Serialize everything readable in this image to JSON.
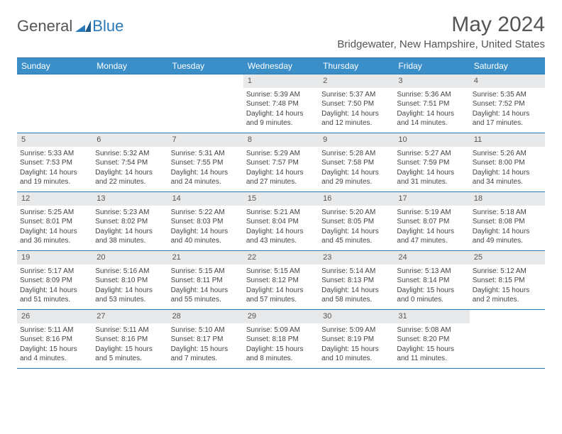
{
  "logo": {
    "text1": "General",
    "text2": "Blue"
  },
  "title": "May 2024",
  "location": "Bridgewater, New Hampshire, United States",
  "colors": {
    "header_bg": "#3b8fc9",
    "border": "#2a7ab9",
    "daynum_bg": "#e8e9ea"
  },
  "typography": {
    "title_fontsize": 30,
    "location_fontsize": 15,
    "dayhead_fontsize": 12,
    "cell_fontsize": 10
  },
  "dayNames": [
    "Sunday",
    "Monday",
    "Tuesday",
    "Wednesday",
    "Thursday",
    "Friday",
    "Saturday"
  ],
  "weeks": [
    [
      null,
      null,
      null,
      {
        "n": "1",
        "sr": "5:39 AM",
        "ss": "7:48 PM",
        "dl": "14 hours and 9 minutes."
      },
      {
        "n": "2",
        "sr": "5:37 AM",
        "ss": "7:50 PM",
        "dl": "14 hours and 12 minutes."
      },
      {
        "n": "3",
        "sr": "5:36 AM",
        "ss": "7:51 PM",
        "dl": "14 hours and 14 minutes."
      },
      {
        "n": "4",
        "sr": "5:35 AM",
        "ss": "7:52 PM",
        "dl": "14 hours and 17 minutes."
      }
    ],
    [
      {
        "n": "5",
        "sr": "5:33 AM",
        "ss": "7:53 PM",
        "dl": "14 hours and 19 minutes."
      },
      {
        "n": "6",
        "sr": "5:32 AM",
        "ss": "7:54 PM",
        "dl": "14 hours and 22 minutes."
      },
      {
        "n": "7",
        "sr": "5:31 AM",
        "ss": "7:55 PM",
        "dl": "14 hours and 24 minutes."
      },
      {
        "n": "8",
        "sr": "5:29 AM",
        "ss": "7:57 PM",
        "dl": "14 hours and 27 minutes."
      },
      {
        "n": "9",
        "sr": "5:28 AM",
        "ss": "7:58 PM",
        "dl": "14 hours and 29 minutes."
      },
      {
        "n": "10",
        "sr": "5:27 AM",
        "ss": "7:59 PM",
        "dl": "14 hours and 31 minutes."
      },
      {
        "n": "11",
        "sr": "5:26 AM",
        "ss": "8:00 PM",
        "dl": "14 hours and 34 minutes."
      }
    ],
    [
      {
        "n": "12",
        "sr": "5:25 AM",
        "ss": "8:01 PM",
        "dl": "14 hours and 36 minutes."
      },
      {
        "n": "13",
        "sr": "5:23 AM",
        "ss": "8:02 PM",
        "dl": "14 hours and 38 minutes."
      },
      {
        "n": "14",
        "sr": "5:22 AM",
        "ss": "8:03 PM",
        "dl": "14 hours and 40 minutes."
      },
      {
        "n": "15",
        "sr": "5:21 AM",
        "ss": "8:04 PM",
        "dl": "14 hours and 43 minutes."
      },
      {
        "n": "16",
        "sr": "5:20 AM",
        "ss": "8:05 PM",
        "dl": "14 hours and 45 minutes."
      },
      {
        "n": "17",
        "sr": "5:19 AM",
        "ss": "8:07 PM",
        "dl": "14 hours and 47 minutes."
      },
      {
        "n": "18",
        "sr": "5:18 AM",
        "ss": "8:08 PM",
        "dl": "14 hours and 49 minutes."
      }
    ],
    [
      {
        "n": "19",
        "sr": "5:17 AM",
        "ss": "8:09 PM",
        "dl": "14 hours and 51 minutes."
      },
      {
        "n": "20",
        "sr": "5:16 AM",
        "ss": "8:10 PM",
        "dl": "14 hours and 53 minutes."
      },
      {
        "n": "21",
        "sr": "5:15 AM",
        "ss": "8:11 PM",
        "dl": "14 hours and 55 minutes."
      },
      {
        "n": "22",
        "sr": "5:15 AM",
        "ss": "8:12 PM",
        "dl": "14 hours and 57 minutes."
      },
      {
        "n": "23",
        "sr": "5:14 AM",
        "ss": "8:13 PM",
        "dl": "14 hours and 58 minutes."
      },
      {
        "n": "24",
        "sr": "5:13 AM",
        "ss": "8:14 PM",
        "dl": "15 hours and 0 minutes."
      },
      {
        "n": "25",
        "sr": "5:12 AM",
        "ss": "8:15 PM",
        "dl": "15 hours and 2 minutes."
      }
    ],
    [
      {
        "n": "26",
        "sr": "5:11 AM",
        "ss": "8:16 PM",
        "dl": "15 hours and 4 minutes."
      },
      {
        "n": "27",
        "sr": "5:11 AM",
        "ss": "8:16 PM",
        "dl": "15 hours and 5 minutes."
      },
      {
        "n": "28",
        "sr": "5:10 AM",
        "ss": "8:17 PM",
        "dl": "15 hours and 7 minutes."
      },
      {
        "n": "29",
        "sr": "5:09 AM",
        "ss": "8:18 PM",
        "dl": "15 hours and 8 minutes."
      },
      {
        "n": "30",
        "sr": "5:09 AM",
        "ss": "8:19 PM",
        "dl": "15 hours and 10 minutes."
      },
      {
        "n": "31",
        "sr": "5:08 AM",
        "ss": "8:20 PM",
        "dl": "15 hours and 11 minutes."
      },
      null
    ]
  ],
  "labels": {
    "sunrise": "Sunrise:",
    "sunset": "Sunset:",
    "daylight": "Daylight:"
  }
}
